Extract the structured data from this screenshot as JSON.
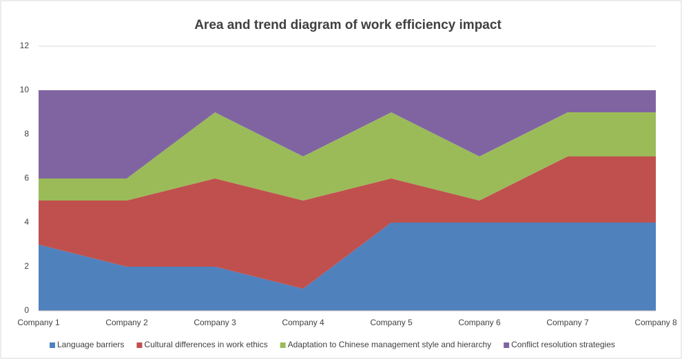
{
  "chart_data": {
    "type": "stacked_area",
    "title": "Area and trend diagram of work efficiency impact",
    "categories": [
      "Company 1",
      "Company 2",
      "Company 3",
      "Company 4",
      "Company 5",
      "Company 6",
      "Company 7",
      "Company 8"
    ],
    "series": [
      {
        "name": "Language barriers",
        "color": "#4f81bd",
        "values": [
          3,
          2,
          2,
          1,
          4,
          4,
          4,
          4
        ]
      },
      {
        "name": "Cultural differences in work ethics",
        "color": "#c0504d",
        "values": [
          2,
          3,
          4,
          4,
          2,
          1,
          3,
          3
        ]
      },
      {
        "name": "Adaptation to Chinese management style and hierarchy",
        "color": "#9bbb59",
        "values": [
          1,
          1,
          3,
          2,
          3,
          2,
          2,
          2
        ]
      },
      {
        "name": "Conflict resolution strategies",
        "color": "#8064a2",
        "values": [
          4,
          4,
          1,
          3,
          1,
          3,
          1,
          1
        ]
      }
    ],
    "ylim": [
      0,
      12
    ],
    "yticks": [
      0,
      2,
      4,
      6,
      8,
      10,
      12
    ],
    "grid": true,
    "legend": "bottom"
  }
}
